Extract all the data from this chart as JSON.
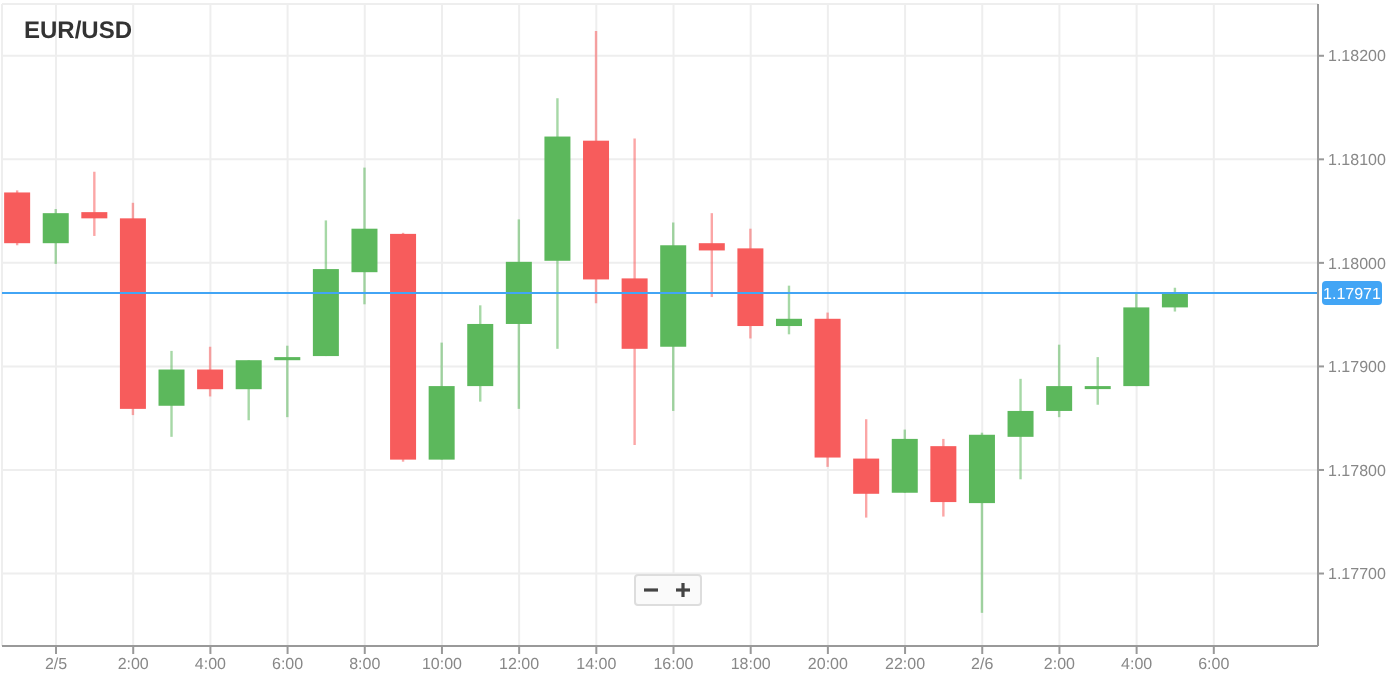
{
  "chart_data": {
    "type": "candlestick",
    "title": "EUR/USD",
    "x": [
      "--02-04T23:00",
      "--02-05T00:00",
      "--02-05T01:00",
      "--02-05T02:00",
      "--02-05T03:00",
      "--02-05T04:00",
      "--02-05T05:00",
      "--02-05T06:00",
      "--02-05T07:00",
      "--02-05T08:00",
      "--02-05T09:00",
      "--02-05T10:00",
      "--02-05T11:00",
      "--02-05T12:00",
      "--02-05T13:00",
      "--02-05T14:00",
      "--02-05T15:00",
      "--02-05T16:00",
      "--02-05T17:00",
      "--02-05T18:00",
      "--02-05T19:00",
      "--02-05T20:00",
      "--02-05T21:00",
      "--02-05T22:00",
      "--02-05T23:00",
      "--02-06T00:00",
      "--02-06T01:00",
      "--02-06T02:00",
      "--02-06T03:00",
      "--02-06T04:00",
      "--02-06T05:00"
    ],
    "ohlc": [
      [
        1.18068,
        1.1807,
        1.18017,
        1.18019
      ],
      [
        1.18019,
        1.18052,
        1.17999,
        1.18048
      ],
      [
        1.18049,
        1.18088,
        1.18026,
        1.18043
      ],
      [
        1.18043,
        1.18058,
        1.17853,
        1.17859
      ],
      [
        1.17862,
        1.17915,
        1.17832,
        1.17897
      ],
      [
        1.17897,
        1.17919,
        1.17871,
        1.17878
      ],
      [
        1.17878,
        1.17906,
        1.17848,
        1.17906
      ],
      [
        1.17906,
        1.1792,
        1.17851,
        1.17909
      ],
      [
        1.1791,
        1.18041,
        1.1791,
        1.17994
      ],
      [
        1.17991,
        1.18092,
        1.1796,
        1.18033
      ],
      [
        1.18028,
        1.18029,
        1.17808,
        1.1781
      ],
      [
        1.1781,
        1.17923,
        1.1781,
        1.17881
      ],
      [
        1.17881,
        1.17959,
        1.17866,
        1.17941
      ],
      [
        1.17941,
        1.18042,
        1.17859,
        1.18001
      ],
      [
        1.18002,
        1.18159,
        1.17917,
        1.18122
      ],
      [
        1.18118,
        1.18224,
        1.17961,
        1.17984
      ],
      [
        1.17985,
        1.1812,
        1.17824,
        1.17917
      ],
      [
        1.17919,
        1.18039,
        1.17857,
        1.18017
      ],
      [
        1.18019,
        1.18048,
        1.17967,
        1.18012
      ],
      [
        1.18014,
        1.18033,
        1.17927,
        1.17939
      ],
      [
        1.17939,
        1.17978,
        1.17931,
        1.17946
      ],
      [
        1.17946,
        1.17952,
        1.17803,
        1.17812
      ],
      [
        1.17811,
        1.17849,
        1.17754,
        1.17777
      ],
      [
        1.17778,
        1.17839,
        1.17778,
        1.1783
      ],
      [
        1.17823,
        1.1783,
        1.17755,
        1.17769
      ],
      [
        1.17768,
        1.17836,
        1.17662,
        1.17834
      ],
      [
        1.17832,
        1.17888,
        1.17791,
        1.17857
      ],
      [
        1.17857,
        1.17921,
        1.17851,
        1.17881
      ],
      [
        1.17881,
        1.17909,
        1.17863,
        1.17881
      ],
      [
        1.17881,
        1.1797,
        1.17881,
        1.17957
      ],
      [
        1.17957,
        1.17976,
        1.17953,
        1.17971
      ]
    ],
    "colors": [
      "#f75c5c",
      "#5cb85c",
      "#f75c5c",
      "#f75c5c",
      "#5cb85c",
      "#f75c5c",
      "#5cb85c",
      "#5cb85c",
      "#5cb85c",
      "#5cb85c",
      "#f75c5c",
      "#5cb85c",
      "#5cb85c",
      "#5cb85c",
      "#5cb85c",
      "#f75c5c",
      "#f75c5c",
      "#5cb85c",
      "#f75c5c",
      "#f75c5c",
      "#5cb85c",
      "#f75c5c",
      "#f75c5c",
      "#5cb85c",
      "#f75c5c",
      "#5cb85c",
      "#5cb85c",
      "#5cb85c",
      "#5cb85c",
      "#5cb85c",
      "#5cb85c"
    ],
    "xlim": [
      "--02-04T22:36",
      "--02-06T08:42"
    ],
    "xticks": [
      {
        "value": "--02-05",
        "label": "2/5"
      },
      {
        "value": "--02-05T02:00",
        "label": "2:00"
      },
      {
        "value": "--02-05T04:00",
        "label": "4:00"
      },
      {
        "value": "--02-05T06:00",
        "label": "6:00"
      },
      {
        "value": "--02-05T08:00",
        "label": "8:00"
      },
      {
        "value": "--02-05T10:00",
        "label": "10:00"
      },
      {
        "value": "--02-05T12:00",
        "label": "12:00"
      },
      {
        "value": "--02-05T14:00",
        "label": "14:00"
      },
      {
        "value": "--02-05T16:00",
        "label": "16:00"
      },
      {
        "value": "--02-05T18:00",
        "label": "18:00"
      },
      {
        "value": "--02-05T20:00",
        "label": "20:00"
      },
      {
        "value": "--02-05T22:00",
        "label": "22:00"
      },
      {
        "value": "--02-06",
        "label": "2/6"
      },
      {
        "value": "--02-06T02:00",
        "label": "2:00"
      },
      {
        "value": "--02-06T04:00",
        "label": "4:00"
      },
      {
        "value": "--02-06T06:00",
        "label": "6:00"
      }
    ],
    "ylim": [
      1.1763,
      1.1825
    ],
    "yticks": [
      {
        "value": 1.177,
        "label": "1.17700"
      },
      {
        "value": 1.178,
        "label": "1.17800"
      },
      {
        "value": 1.179,
        "label": "1.17900"
      },
      {
        "value": 1.18,
        "label": "1.18000"
      },
      {
        "value": 1.181,
        "label": "1.18100"
      },
      {
        "value": 1.182,
        "label": "1.18200"
      }
    ],
    "grid": true,
    "ref_lines": [
      {
        "axis": "y",
        "value": 1.17971,
        "label": "1.17971",
        "color": "#42a5f5"
      }
    ]
  }
}
